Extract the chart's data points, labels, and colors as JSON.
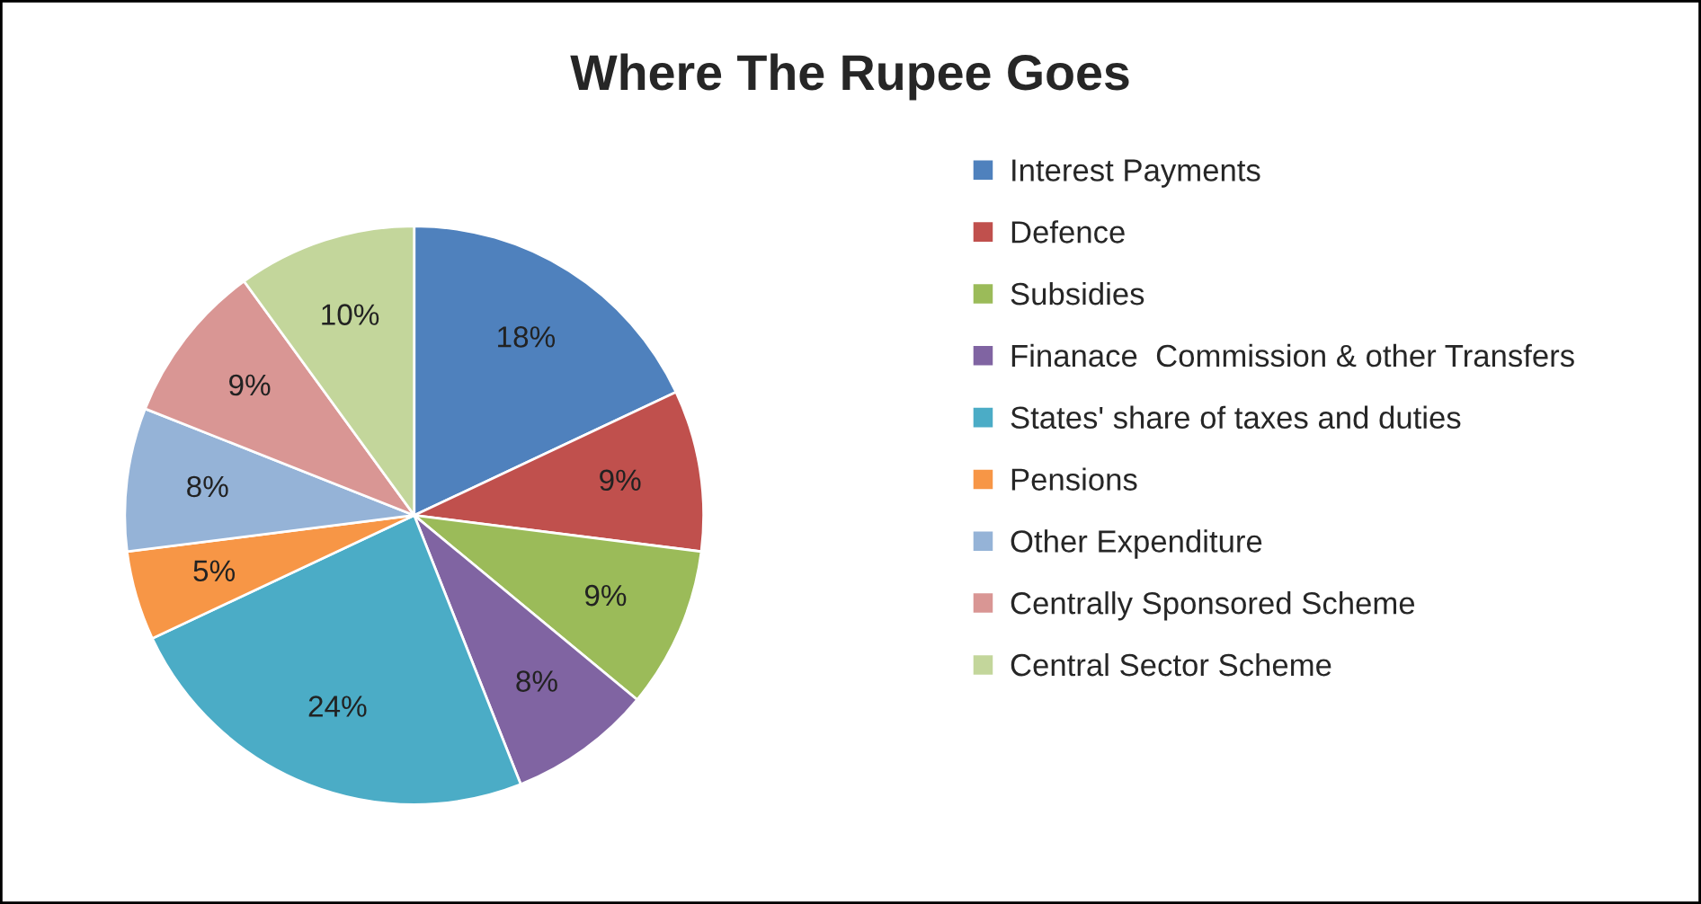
{
  "chart_data": {
    "type": "pie",
    "title": "Where The Rupee Goes",
    "categories": [
      "Interest Payments",
      "Defence",
      "Subsidies",
      "Finanace  Commission & other Transfers",
      "States' share of taxes and duties",
      "Pensions",
      "Other Expenditure",
      "Centrally Sponsored Scheme",
      "Central Sector Scheme"
    ],
    "values": [
      18,
      9,
      9,
      8,
      24,
      5,
      8,
      9,
      10
    ],
    "value_labels": [
      "18%",
      "9%",
      "9%",
      "8%",
      "24%",
      "5%",
      "8%",
      "9%",
      "10%"
    ],
    "colors": [
      "#4f81bd",
      "#c0504d",
      "#9bbb59",
      "#8064a2",
      "#4bacc6",
      "#f79646",
      "#95b3d7",
      "#d99694",
      "#c3d69b"
    ],
    "legend": "right"
  }
}
